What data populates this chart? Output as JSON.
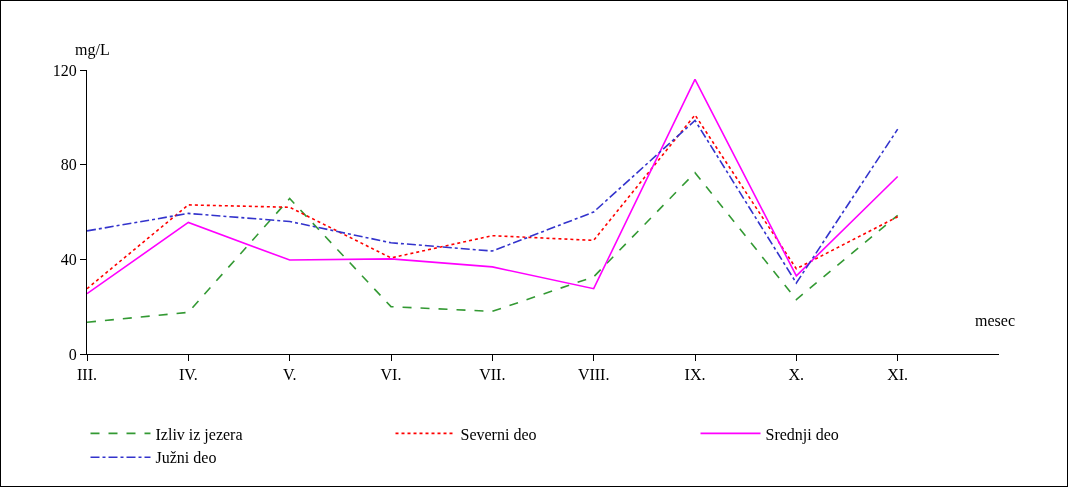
{
  "chart_data": {
    "type": "line",
    "xlabel": "mesec",
    "ylabel": "mg/L",
    "categories": [
      "III.",
      "IV.",
      "V.",
      "VI.",
      "VII.",
      "VIII.",
      "IX.",
      "X.",
      "XI.",
      null
    ],
    "series": [
      {
        "name": "Izliv iz jezera",
        "color": "#339933",
        "line_style": "dashed",
        "values": [
          13.4,
          17.6,
          65.7,
          20,
          18,
          32.6,
          76.6,
          23,
          58.6,
          null
        ]
      },
      {
        "name": "Severni deo",
        "color": "#ff0000",
        "line_style": "dotted",
        "values": [
          27.6,
          63,
          62,
          40.6,
          50,
          48,
          101,
          36,
          58,
          null
        ]
      },
      {
        "name": "Srednji deo",
        "color": "#ff00ff",
        "line_style": "solid",
        "values": [
          25.5,
          55.6,
          39.7,
          40.2,
          36.8,
          27.6,
          116,
          33,
          75,
          null
        ]
      },
      {
        "name": "Južni deo",
        "color": "#3333cc",
        "line_style": "dashdot",
        "values": [
          52,
          59.4,
          56,
          47,
          43.5,
          60,
          98.7,
          30,
          95,
          null
        ]
      }
    ],
    "ylim": [
      0,
      120
    ],
    "yticks": [
      0,
      40,
      80,
      120
    ],
    "grid": false,
    "legend": "bottom",
    "marker": "none"
  }
}
